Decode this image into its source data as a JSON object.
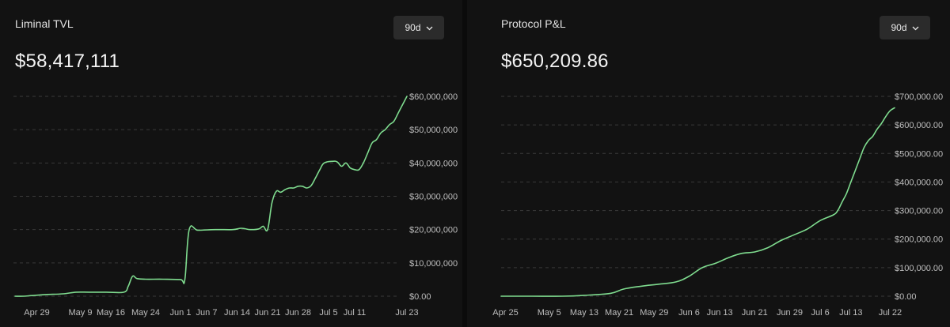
{
  "tvl_panel": {
    "title": "Liminal TVL",
    "value": "$58,417,111",
    "range_label": "90d"
  },
  "pnl_panel": {
    "title": "Protocol P&L",
    "value": "$650,209.86",
    "range_label": "90d"
  },
  "colors": {
    "line": "#7fdc8f",
    "grid": "#3a3a3a",
    "background": "#121212"
  },
  "chart_data": [
    {
      "type": "line",
      "title": "Liminal TVL",
      "y_tick_labels": [
        "$60,000,000",
        "$50,000,000",
        "$40,000,000",
        "$30,000,000",
        "$20,000,000",
        "$10,000,000",
        "$0.00"
      ],
      "y_ticks": [
        60000000,
        50000000,
        40000000,
        30000000,
        20000000,
        10000000,
        0
      ],
      "ylim": [
        0,
        60000000
      ],
      "x_tick_labels": [
        "Apr 29",
        "May 9",
        "May 16",
        "May 24",
        "Jun 1",
        "Jun 7",
        "Jun 14",
        "Jun 21",
        "Jun 28",
        "Jul 5",
        "Jul 11",
        "Jul 23"
      ],
      "x_ticks": [
        "2025-04-29",
        "2025-05-09",
        "2025-05-16",
        "2025-05-24",
        "2025-06-01",
        "2025-06-07",
        "2025-06-14",
        "2025-06-21",
        "2025-06-28",
        "2025-07-05",
        "2025-07-11",
        "2025-07-23"
      ],
      "xlim": [
        "2025-04-24",
        "2025-07-23"
      ],
      "grid": "horizontal dashed",
      "series": [
        {
          "x": [
            "2025-04-24",
            "2025-04-26",
            "2025-04-28",
            "2025-05-01",
            "2025-05-05",
            "2025-05-08",
            "2025-05-11",
            "2025-05-15",
            "2025-05-19",
            "2025-05-20",
            "2025-05-21",
            "2025-05-22",
            "2025-05-24",
            "2025-05-28",
            "2025-06-01",
            "2025-06-02",
            "2025-06-03",
            "2025-06-05",
            "2025-06-09",
            "2025-06-13",
            "2025-06-15",
            "2025-06-17",
            "2025-06-19",
            "2025-06-20",
            "2025-06-21",
            "2025-06-22",
            "2025-06-23",
            "2025-06-24",
            "2025-06-25",
            "2025-06-26",
            "2025-06-27",
            "2025-06-28",
            "2025-06-29",
            "2025-06-30",
            "2025-07-01",
            "2025-07-02",
            "2025-07-03",
            "2025-07-04",
            "2025-07-06",
            "2025-07-07",
            "2025-07-08",
            "2025-07-09",
            "2025-07-10",
            "2025-07-11",
            "2025-07-12",
            "2025-07-13",
            "2025-07-14",
            "2025-07-15",
            "2025-07-16",
            "2025-07-17",
            "2025-07-18",
            "2025-07-19",
            "2025-07-20",
            "2025-07-21",
            "2025-07-22",
            "2025-07-23"
          ],
          "y": [
            0,
            0,
            200000,
            500000,
            700000,
            1200000,
            1200000,
            1200000,
            1200000,
            3000000,
            6000000,
            5300000,
            5100000,
            5100000,
            5000000,
            5000000,
            20000000,
            19800000,
            20000000,
            20000000,
            20400000,
            20000000,
            20200000,
            21000000,
            20000000,
            28000000,
            31500000,
            31200000,
            32000000,
            32500000,
            32500000,
            33000000,
            33000000,
            32500000,
            33200000,
            35500000,
            38000000,
            40000000,
            40500000,
            40300000,
            39000000,
            40000000,
            38500000,
            38000000,
            38000000,
            40000000,
            43000000,
            46000000,
            47000000,
            49000000,
            50000000,
            51500000,
            52500000,
            55000000,
            57500000,
            60000000
          ]
        }
      ]
    },
    {
      "type": "line",
      "title": "Protocol P&L",
      "y_tick_labels": [
        "$700,000.00",
        "$600,000.00",
        "$500,000.00",
        "$400,000.00",
        "$300,000.00",
        "$200,000.00",
        "$100,000.00",
        "$0.00"
      ],
      "y_ticks": [
        700000,
        600000,
        500000,
        400000,
        300000,
        200000,
        100000,
        0
      ],
      "ylim": [
        0,
        700000
      ],
      "x_tick_labels": [
        "Apr 25",
        "May 5",
        "May 13",
        "May 21",
        "May 29",
        "Jun 6",
        "Jun 13",
        "Jun 21",
        "Jun 29",
        "Jul 6",
        "Jul 13",
        "Jul 22"
      ],
      "x_ticks": [
        "2025-04-25",
        "2025-05-05",
        "2025-05-13",
        "2025-05-21",
        "2025-05-29",
        "2025-06-06",
        "2025-06-13",
        "2025-06-21",
        "2025-06-29",
        "2025-07-06",
        "2025-07-13",
        "2025-07-22"
      ],
      "xlim": [
        "2025-04-24",
        "2025-07-23"
      ],
      "grid": "horizontal dashed",
      "series": [
        {
          "x": [
            "2025-04-24",
            "2025-05-01",
            "2025-05-08",
            "2025-05-13",
            "2025-05-19",
            "2025-05-22",
            "2025-05-26",
            "2025-05-30",
            "2025-06-03",
            "2025-06-06",
            "2025-06-09",
            "2025-06-12",
            "2025-06-15",
            "2025-06-18",
            "2025-06-21",
            "2025-06-24",
            "2025-06-27",
            "2025-06-30",
            "2025-07-03",
            "2025-07-06",
            "2025-07-09",
            "2025-07-10",
            "2025-07-11",
            "2025-07-12",
            "2025-07-13",
            "2025-07-14",
            "2025-07-15",
            "2025-07-16",
            "2025-07-17",
            "2025-07-18",
            "2025-07-19",
            "2025-07-20",
            "2025-07-21",
            "2025-07-22",
            "2025-07-23"
          ],
          "y": [
            0,
            0,
            0,
            3000,
            10000,
            25000,
            35000,
            42000,
            50000,
            70000,
            100000,
            115000,
            135000,
            150000,
            155000,
            170000,
            195000,
            215000,
            235000,
            265000,
            285000,
            300000,
            330000,
            360000,
            400000,
            440000,
            480000,
            520000,
            545000,
            560000,
            585000,
            605000,
            630000,
            650000,
            660000
          ]
        }
      ]
    }
  ]
}
